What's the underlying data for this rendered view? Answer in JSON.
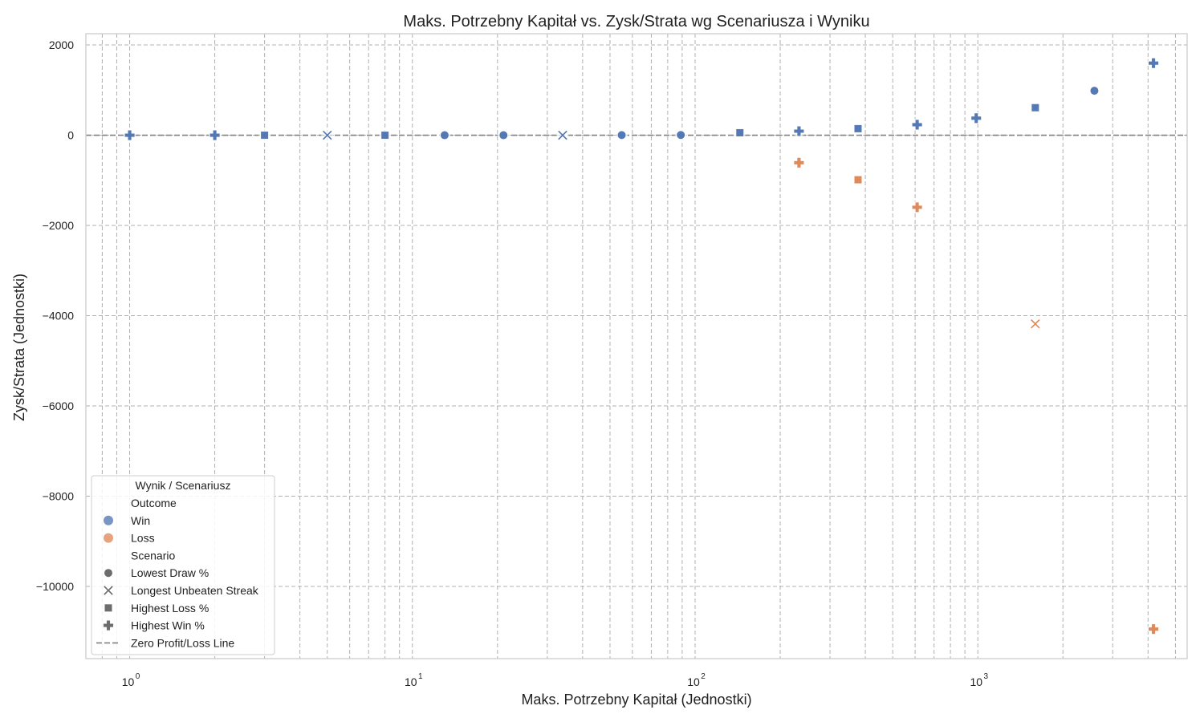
{
  "chart_data": {
    "type": "scatter",
    "title": "Maks. Potrzebny Kapitał vs. Zysk/Strata wg Scenariusza i Wyniku",
    "xlabel": "Maks. Potrzebny Kapitał (Jednostki)",
    "ylabel": "Zysk/Strata (Jednostki)",
    "xscale": "log",
    "xlim": [
      0.7,
      5500
    ],
    "ylim": [
      -11600,
      2250
    ],
    "x_ticks": [
      {
        "value": 1,
        "base": "10",
        "exp": "0"
      },
      {
        "value": 10,
        "base": "10",
        "exp": "1"
      },
      {
        "value": 100,
        "base": "10",
        "exp": "2"
      },
      {
        "value": 1000,
        "base": "10",
        "exp": "3"
      }
    ],
    "y_ticks": [
      {
        "value": 2000,
        "label": "2000"
      },
      {
        "value": 0,
        "label": "0"
      },
      {
        "value": -2000,
        "label": "−2000"
      },
      {
        "value": -4000,
        "label": "−4000"
      },
      {
        "value": -6000,
        "label": "−6000"
      },
      {
        "value": -8000,
        "label": "−8000"
      },
      {
        "value": -10000,
        "label": "−10000"
      }
    ],
    "grid": true,
    "reference_line": {
      "y": 0,
      "label": "Zero Profit/Loss Line"
    },
    "colors": {
      "Win": "#4c72b0",
      "Loss": "#dd8452"
    },
    "series": [
      {
        "outcome": "Win",
        "scenario": "Lowest Draw %",
        "points": [
          [
            13,
            0
          ],
          [
            21,
            0
          ],
          [
            55,
            3
          ],
          [
            89,
            5
          ],
          [
            2584,
            985
          ]
        ]
      },
      {
        "outcome": "Win",
        "scenario": "Longest Unbeaten Streak",
        "points": [
          [
            5,
            0
          ],
          [
            34,
            0
          ]
        ]
      },
      {
        "outcome": "Win",
        "scenario": "Highest Loss %",
        "points": [
          [
            3,
            0
          ],
          [
            8,
            0
          ],
          [
            144,
            55
          ],
          [
            377,
            145
          ],
          [
            1597,
            610
          ]
        ]
      },
      {
        "outcome": "Win",
        "scenario": "Highest Win %",
        "points": [
          [
            1,
            0
          ],
          [
            2,
            0
          ],
          [
            233,
            90
          ],
          [
            610,
            233
          ],
          [
            987,
            377
          ],
          [
            4181,
            1597
          ]
        ]
      },
      {
        "outcome": "Loss",
        "scenario": "Highest Win %",
        "points": [
          [
            233,
            -610
          ],
          [
            610,
            -1597
          ],
          [
            4181,
            -10946
          ]
        ]
      },
      {
        "outcome": "Loss",
        "scenario": "Highest Loss %",
        "points": [
          [
            377,
            -987
          ]
        ]
      },
      {
        "outcome": "Loss",
        "scenario": "Longest Unbeaten Streak",
        "points": [
          [
            1597,
            -4181
          ]
        ]
      }
    ],
    "legend": {
      "title": "Wynik / Scenariusz",
      "placement": "lower-left",
      "entries": [
        {
          "kind": "header",
          "label": "Outcome"
        },
        {
          "kind": "color",
          "label": "Win",
          "color": "#4c72b0"
        },
        {
          "kind": "color",
          "label": "Loss",
          "color": "#dd8452"
        },
        {
          "kind": "header",
          "label": "Scenario"
        },
        {
          "kind": "marker",
          "label": "Lowest Draw %",
          "marker": "circle"
        },
        {
          "kind": "marker",
          "label": "Longest Unbeaten Streak",
          "marker": "x"
        },
        {
          "kind": "marker",
          "label": "Highest Loss %",
          "marker": "square"
        },
        {
          "kind": "marker",
          "label": "Highest Win %",
          "marker": "plus"
        },
        {
          "kind": "line",
          "label": "Zero Profit/Loss Line"
        }
      ]
    }
  }
}
